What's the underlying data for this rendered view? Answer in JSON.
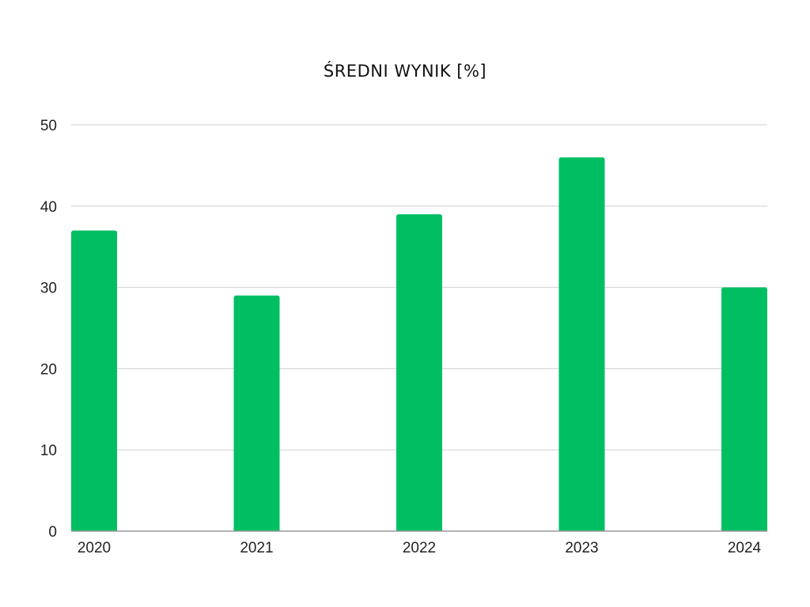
{
  "chart_data": {
    "type": "bar",
    "title": "ŚREDNI WYNIK [%]",
    "categories": [
      "2020",
      "2021",
      "2022",
      "2023",
      "2024"
    ],
    "values": [
      37,
      29,
      39,
      46,
      30
    ],
    "ylim": [
      0,
      50
    ],
    "yticks": [
      0,
      10,
      20,
      30,
      40,
      50
    ],
    "xlabel": "",
    "ylabel": "",
    "grid": true,
    "legend": "none",
    "bar_color": "#00BF63",
    "grid_color": "#cfcfcf",
    "axis_color": "#999999"
  }
}
